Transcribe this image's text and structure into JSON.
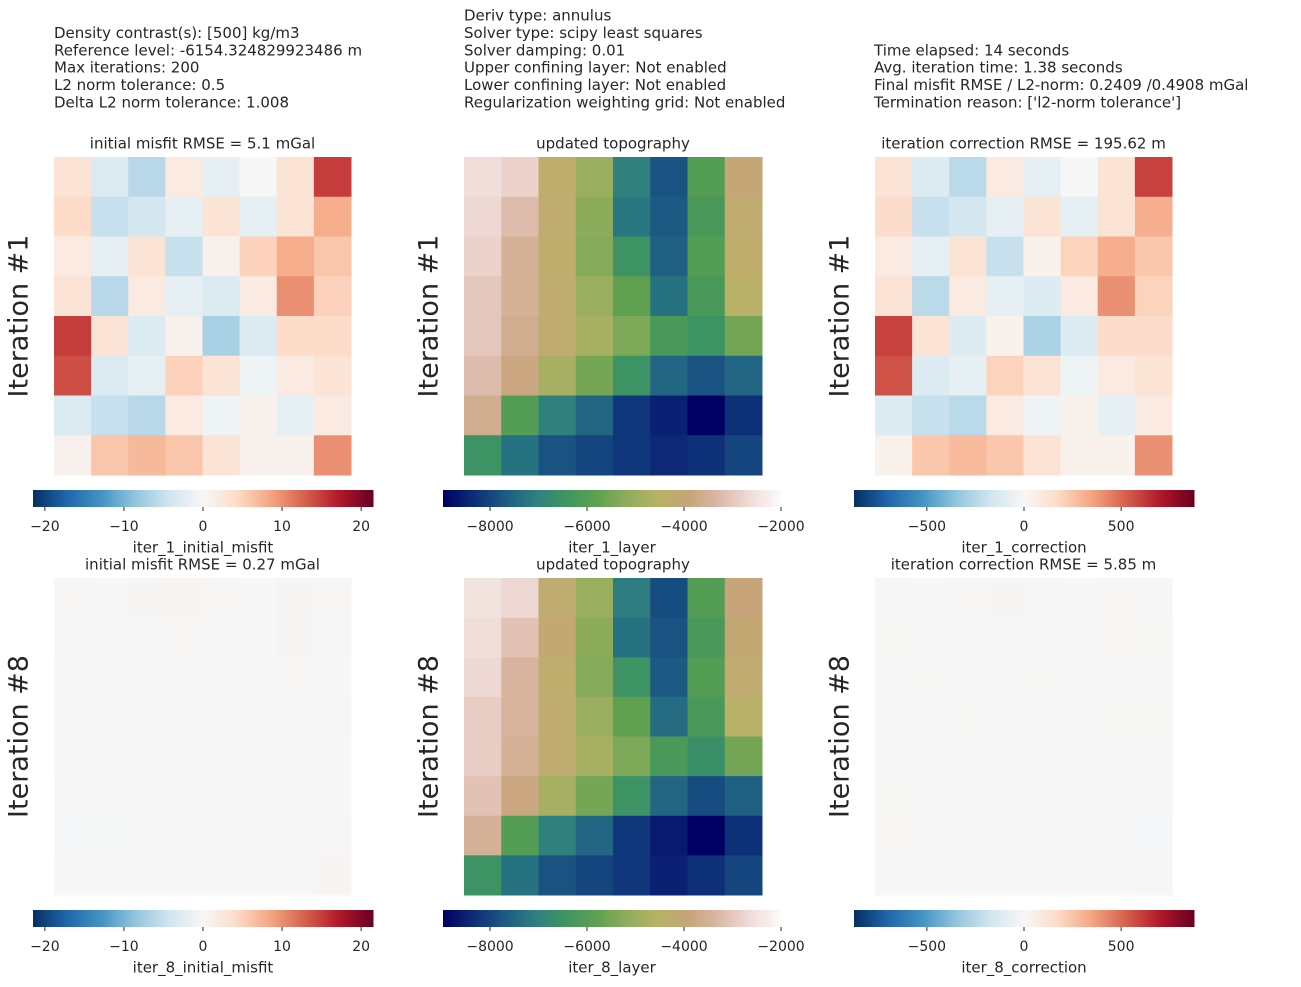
{
  "info": [
    [
      "Density contrast(s): [500] kg/m3",
      "Reference level: -6154.324829923486 m",
      "Max iterations: 200",
      "L2 norm tolerance: 0.5",
      "Delta L2 norm tolerance: 1.008"
    ],
    [
      "Deriv type: annulus",
      "Solver type: scipy least squares",
      "Solver damping: 0.01",
      "Upper confining layer: Not enabled",
      "Lower confining layer: Not enabled",
      "Regularization weighting grid: Not enabled"
    ],
    [
      "Time elapsed: 14 seconds",
      "Avg. iteration time: 1.38 seconds",
      "Final misfit RMSE / L2-norm: 0.2409 /0.4908 mGal",
      "Termination reason: ['l2-norm tolerance']"
    ]
  ],
  "chart_data": [
    {
      "type": "heatmap",
      "title": "initial misfit RMSE = 5.1 mGal",
      "ylabel": "Iteration #1",
      "colorbar_label": "iter_1_initial_misfit",
      "colormap": "RdBu_r",
      "zlim": [
        -21.5,
        21.5
      ],
      "zticks": [
        {
          "value": -20,
          "label": "−20"
        },
        {
          "value": -10,
          "label": "−10"
        },
        0,
        10,
        20
      ],
      "values": [
        [
          3,
          -3,
          -6,
          2,
          -2,
          0,
          3,
          15
        ],
        [
          4,
          -5,
          -4,
          -2,
          3,
          -2,
          3,
          8
        ],
        [
          2,
          -2,
          3,
          -5,
          1,
          5,
          8,
          6
        ],
        [
          3,
          -6,
          2,
          -2,
          -3,
          2,
          10,
          5
        ],
        [
          15,
          3,
          -3,
          1,
          -7,
          -3,
          4,
          4
        ],
        [
          14,
          -3,
          -2,
          5,
          3,
          -1,
          2,
          3
        ],
        [
          -3,
          -5,
          -6,
          2,
          -1,
          1,
          -2,
          2
        ],
        [
          1,
          6,
          7,
          6,
          3,
          1,
          1,
          10
        ]
      ]
    },
    {
      "type": "heatmap",
      "title": "updated topography",
      "ylabel": "Iteration #1",
      "colorbar_label": "iter_1_layer",
      "colormap": "gist_earth",
      "zlim": [
        -8970,
        -2000
      ],
      "zticks": [
        {
          "value": -8000,
          "label": "−8000"
        },
        {
          "value": -6000,
          "label": "−6000"
        },
        {
          "value": -4000,
          "label": "−4000"
        },
        {
          "value": -2000,
          "label": "−2000"
        }
      ],
      "values": [
        [
          -2600,
          -2800,
          -4300,
          -5000,
          -7000,
          -7800,
          -6000,
          -4000
        ],
        [
          -2700,
          -3200,
          -4200,
          -5200,
          -7200,
          -7700,
          -6200,
          -4200
        ],
        [
          -2800,
          -3500,
          -4300,
          -5300,
          -6500,
          -7600,
          -6000,
          -4300
        ],
        [
          -3000,
          -3500,
          -4200,
          -5000,
          -5800,
          -7300,
          -6200,
          -4500
        ],
        [
          -3000,
          -3600,
          -4200,
          -4800,
          -5400,
          -6200,
          -6500,
          -5500
        ],
        [
          -3200,
          -3800,
          -4800,
          -5500,
          -6500,
          -7500,
          -7800,
          -7500
        ],
        [
          -3600,
          -6000,
          -7000,
          -7500,
          -8200,
          -8500,
          -9000,
          -8300
        ],
        [
          -6500,
          -7300,
          -7800,
          -8000,
          -8200,
          -8400,
          -8300,
          -8000
        ]
      ]
    },
    {
      "type": "heatmap",
      "title": "iteration correction RMSE = 195.62 m",
      "ylabel": "Iteration #1",
      "colorbar_label": "iter_1_correction",
      "colormap": "RdBu_r",
      "zlim": [
        -875,
        875
      ],
      "zticks": [
        {
          "value": -500,
          "label": "−500"
        },
        0,
        500
      ],
      "values": [
        [
          120,
          -120,
          -240,
          80,
          -80,
          0,
          120,
          600
        ],
        [
          160,
          -200,
          -160,
          -80,
          120,
          -80,
          120,
          320
        ],
        [
          80,
          -80,
          120,
          -200,
          40,
          200,
          320,
          240
        ],
        [
          120,
          -240,
          80,
          -80,
          -120,
          80,
          400,
          200
        ],
        [
          600,
          120,
          -120,
          40,
          -280,
          -120,
          160,
          160
        ],
        [
          560,
          -120,
          -80,
          200,
          120,
          -40,
          80,
          120
        ],
        [
          -120,
          -200,
          -240,
          80,
          -40,
          40,
          -80,
          80
        ],
        [
          40,
          240,
          280,
          240,
          120,
          40,
          40,
          400
        ]
      ]
    },
    {
      "type": "heatmap",
      "title": "initial misfit RMSE = 0.27 mGal",
      "ylabel": "Iteration #8",
      "colorbar_label": "iter_8_initial_misfit",
      "colormap": "RdBu_r",
      "zlim": [
        -21.5,
        21.5
      ],
      "zticks": [
        {
          "value": -20,
          "label": "−20"
        },
        {
          "value": -10,
          "label": "−10"
        },
        0,
        10,
        20
      ],
      "values": [
        [
          0.2,
          0,
          0.3,
          0.5,
          0.2,
          0,
          0.3,
          0.2
        ],
        [
          0.1,
          0,
          0,
          0.2,
          0,
          0,
          0.3,
          0.1
        ],
        [
          0,
          0.1,
          0,
          0,
          0.1,
          0,
          0.2,
          0
        ],
        [
          0,
          0,
          0.1,
          0,
          0,
          0,
          0.1,
          0.1
        ],
        [
          0,
          0,
          0,
          0,
          0,
          0,
          0,
          0
        ],
        [
          0.1,
          0,
          0,
          0,
          0,
          0,
          0,
          0
        ],
        [
          -0.2,
          -0.1,
          0,
          0,
          0,
          0,
          0,
          0.1
        ],
        [
          0,
          0,
          0,
          0,
          0,
          0,
          0,
          0.5
        ]
      ]
    },
    {
      "type": "heatmap",
      "title": "updated topography",
      "ylabel": "Iteration #8",
      "colorbar_label": "iter_8_layer",
      "colormap": "gist_earth",
      "zlim": [
        -8970,
        -2000
      ],
      "zticks": [
        {
          "value": -8000,
          "label": "−8000"
        },
        {
          "value": -6000,
          "label": "−6000"
        },
        {
          "value": -4000,
          "label": "−4000"
        },
        {
          "value": -2000,
          "label": "−2000"
        }
      ],
      "values": [
        [
          -2500,
          -2700,
          -4200,
          -5000,
          -7100,
          -7900,
          -6000,
          -3900
        ],
        [
          -2600,
          -3100,
          -4100,
          -5200,
          -7300,
          -7800,
          -6200,
          -4100
        ],
        [
          -2700,
          -3400,
          -4300,
          -5300,
          -6500,
          -7700,
          -6000,
          -4200
        ],
        [
          -2900,
          -3400,
          -4200,
          -5000,
          -5800,
          -7400,
          -6200,
          -4500
        ],
        [
          -2900,
          -3500,
          -4200,
          -4800,
          -5400,
          -6200,
          -6600,
          -5500
        ],
        [
          -3100,
          -3800,
          -4800,
          -5500,
          -6500,
          -7500,
          -7900,
          -7600
        ],
        [
          -3500,
          -6000,
          -7000,
          -7500,
          -8200,
          -8600,
          -9300,
          -8300
        ],
        [
          -6500,
          -7300,
          -7800,
          -8000,
          -8200,
          -8500,
          -8300,
          -8000
        ]
      ]
    },
    {
      "type": "heatmap",
      "title": "iteration correction RMSE = 5.85 m",
      "ylabel": "Iteration #8",
      "colorbar_label": "iter_8_correction",
      "colormap": "RdBu_r",
      "zlim": [
        -875,
        875
      ],
      "zticks": [
        {
          "value": -500,
          "label": "−500"
        },
        0,
        500
      ],
      "values": [
        [
          5,
          0,
          8,
          10,
          5,
          0,
          6,
          4
        ],
        [
          3,
          0,
          0,
          5,
          0,
          0,
          6,
          2
        ],
        [
          0,
          2,
          0,
          0,
          3,
          0,
          4,
          0
        ],
        [
          0,
          0,
          2,
          0,
          0,
          0,
          2,
          2
        ],
        [
          0,
          0,
          0,
          0,
          0,
          0,
          0,
          0
        ],
        [
          2,
          0,
          0,
          0,
          0,
          0,
          0,
          0
        ],
        [
          6,
          4,
          0,
          0,
          0,
          0,
          0,
          -8
        ],
        [
          0,
          0,
          0,
          0,
          0,
          0,
          0,
          5
        ]
      ]
    }
  ]
}
